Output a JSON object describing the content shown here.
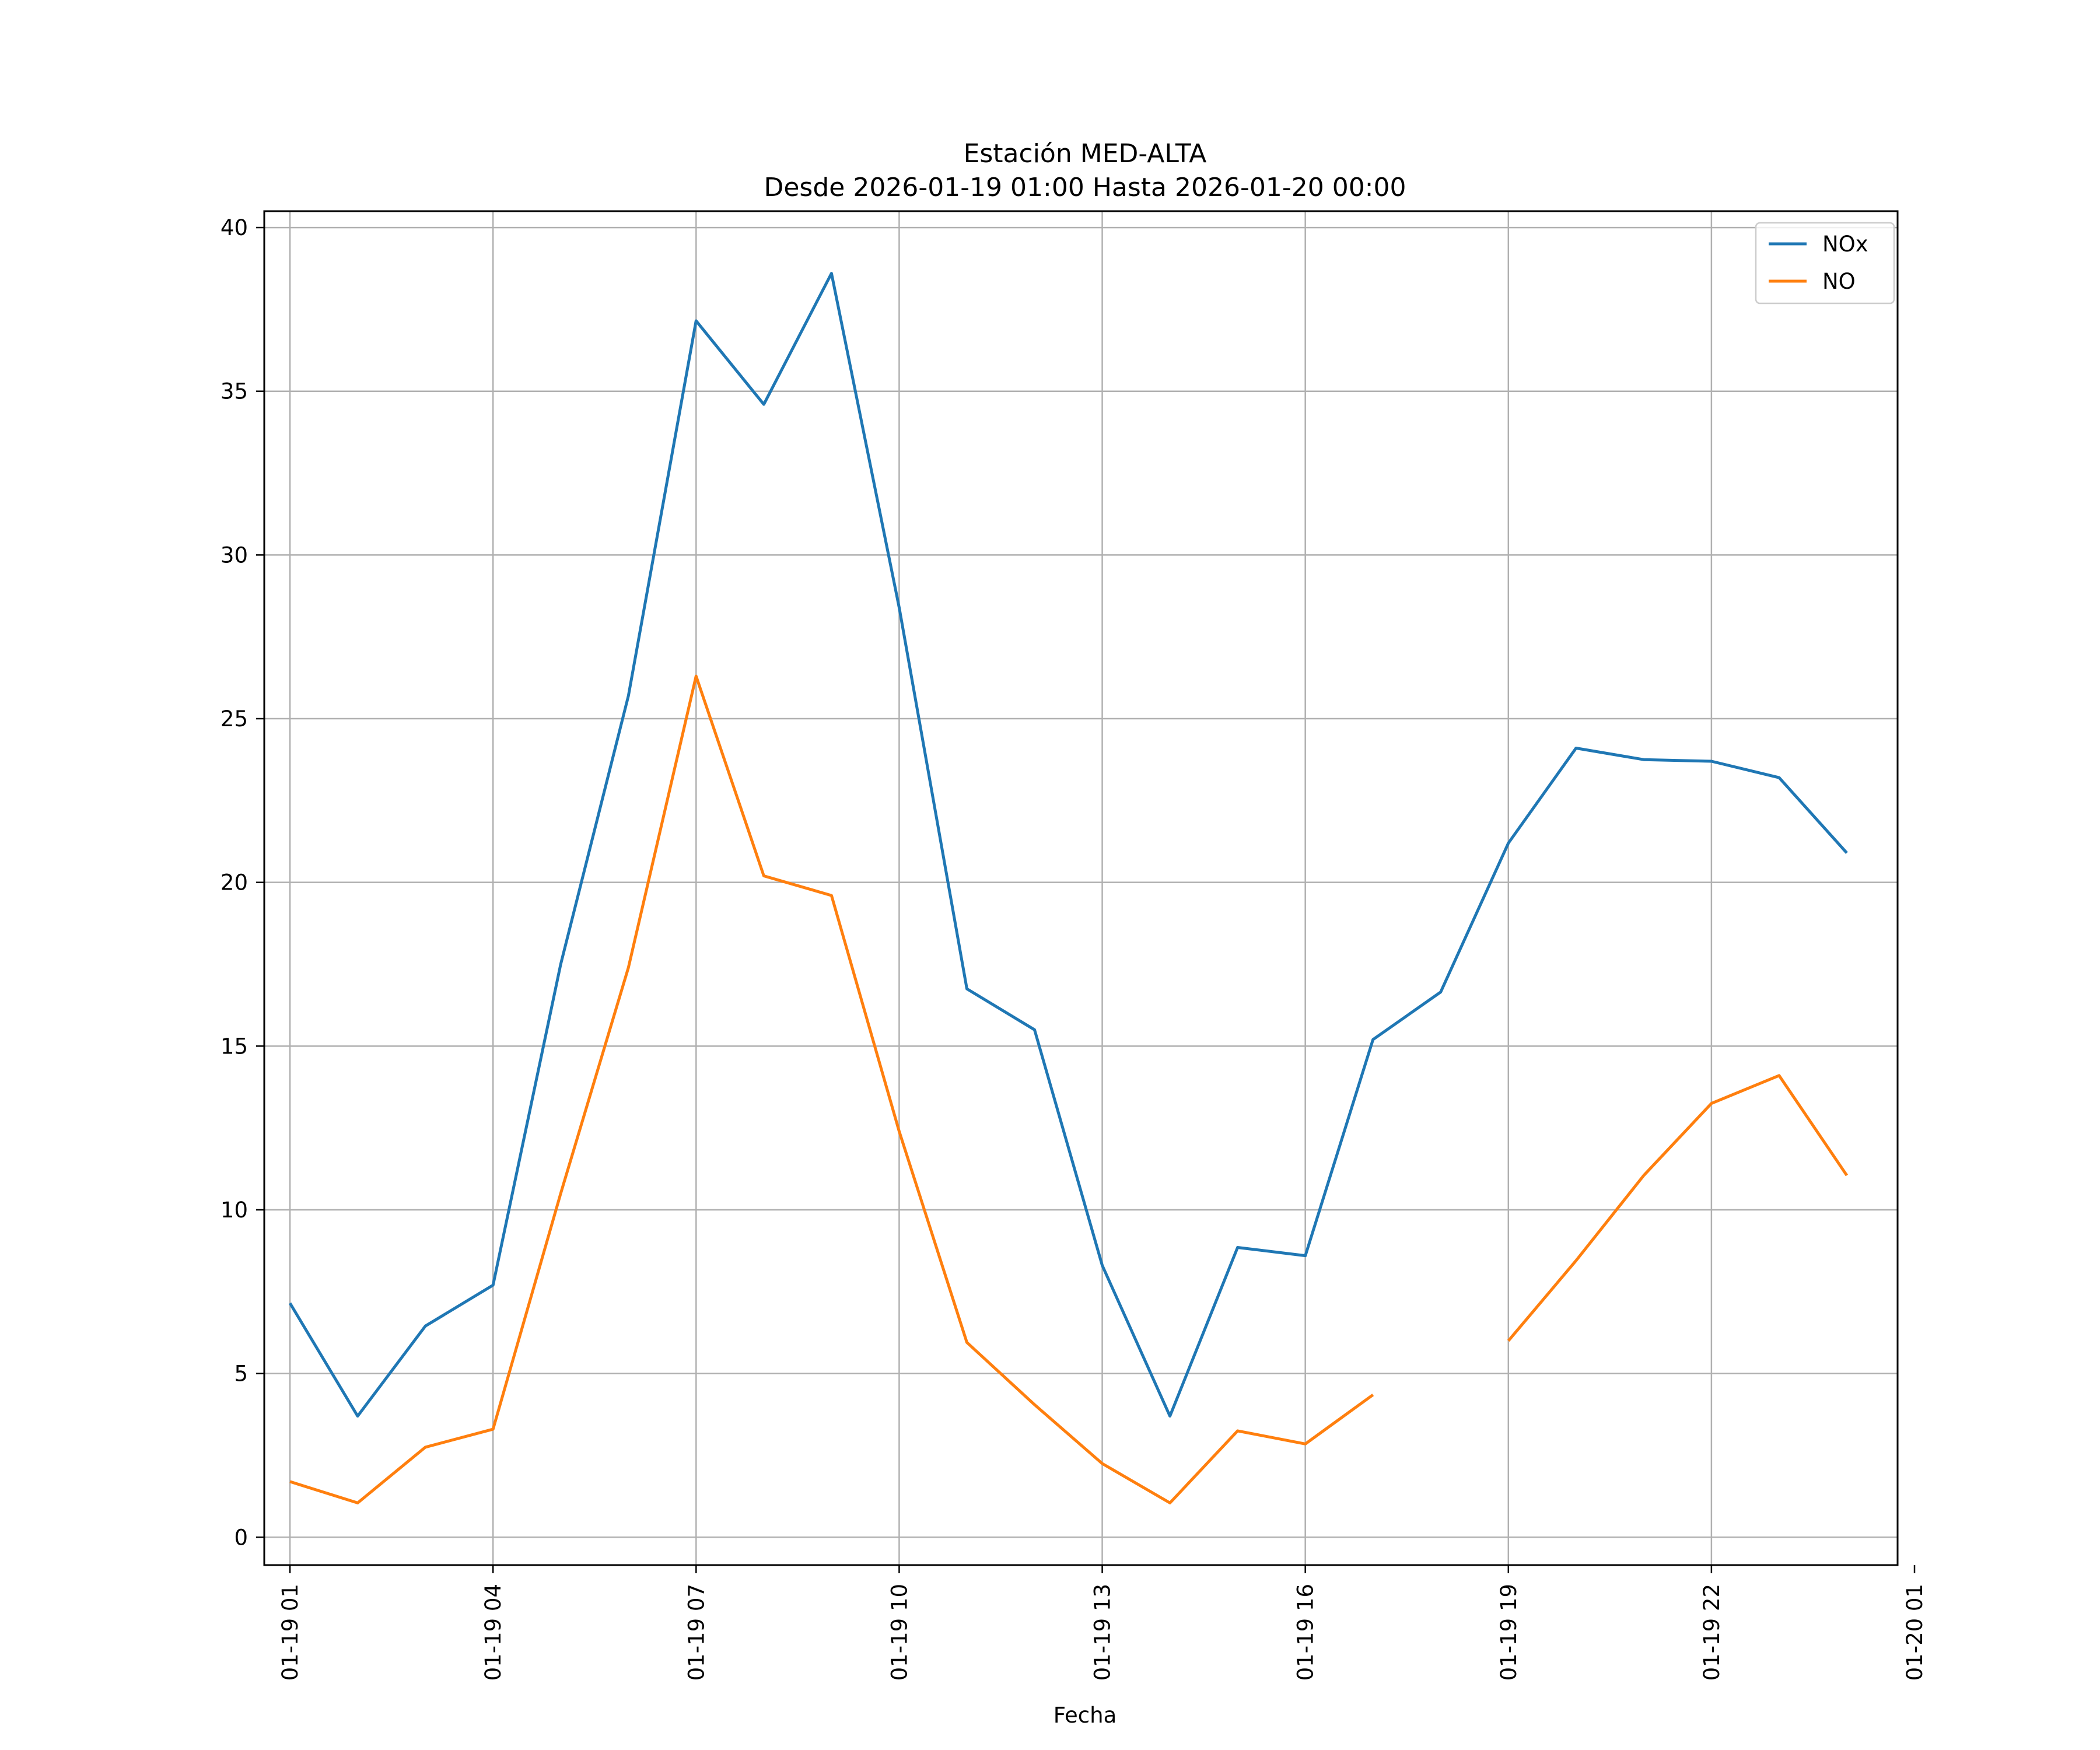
{
  "chart_data": {
    "type": "line",
    "title": [
      "Estación MED-ALTA",
      "Desde 2026-01-19 01:00 Hasta 2026-01-20 00:00"
    ],
    "xlabel": "Fecha",
    "ylabel": "",
    "ylim": [
      -0.85,
      40.5
    ],
    "xlim": [
      0.62,
      24.75
    ],
    "yticks": [
      0,
      5,
      10,
      15,
      20,
      25,
      30,
      35,
      40
    ],
    "xticks": [
      {
        "value": 1,
        "label": "01-19 01"
      },
      {
        "value": 4,
        "label": "01-19 04"
      },
      {
        "value": 7,
        "label": "01-19 07"
      },
      {
        "value": 10,
        "label": "01-19 10"
      },
      {
        "value": 13,
        "label": "01-19 13"
      },
      {
        "value": 16,
        "label": "01-19 16"
      },
      {
        "value": 19,
        "label": "01-19 19"
      },
      {
        "value": 22,
        "label": "01-19 22"
      },
      {
        "value": 25,
        "label": "01-20 01"
      }
    ],
    "grid": true,
    "legend": "top-right",
    "x": [
      1,
      2,
      3,
      4,
      5,
      6,
      7,
      8,
      9,
      10,
      11,
      12,
      13,
      14,
      15,
      16,
      17,
      18,
      19,
      20,
      21,
      22,
      23,
      24
    ],
    "series": [
      {
        "name": "NOx",
        "color": "#1f77b4",
        "values": [
          7.15,
          3.7,
          6.45,
          7.7,
          17.5,
          25.7,
          37.15,
          34.6,
          38.6,
          28.4,
          16.75,
          15.5,
          8.3,
          3.7,
          8.85,
          8.6,
          15.2,
          16.65,
          21.2,
          24.1,
          23.75,
          23.7,
          23.2,
          20.9
        ]
      },
      {
        "name": "NO",
        "color": "#ff7f0e",
        "values": [
          1.7,
          1.05,
          2.75,
          3.3,
          10.5,
          17.4,
          26.3,
          20.2,
          19.6,
          12.4,
          5.95,
          4.05,
          2.25,
          1.05,
          3.25,
          2.85,
          4.35,
          null,
          6.0,
          8.45,
          11.05,
          13.25,
          14.1,
          11.05
        ]
      }
    ]
  }
}
